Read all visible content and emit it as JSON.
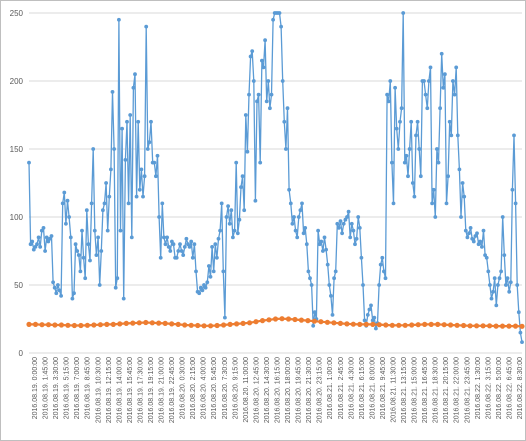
{
  "chart_data": {
    "type": "line",
    "title": "",
    "xlabel": "",
    "ylabel": "",
    "ylim": [
      0,
      250
    ],
    "yticks": [
      0,
      50,
      100,
      150,
      200,
      250
    ],
    "grid": true,
    "legend": "none",
    "x_tick_labels": [
      "2016.08.19. 0:00:00",
      "2016.08.19. 1:45:00",
      "2016.08.19. 3:30:00",
      "2016.08.19. 5:15:00",
      "2016.08.19. 7:00:00",
      "2016.08.19. 8:45:00",
      "2016.08.19. 10:30:00",
      "2016.08.19. 12:15:00",
      "2016.08.19. 14:00:00",
      "2016.08.19. 15:45:00",
      "2016.08.19. 17:30:00",
      "2016.08.19. 19:15:00",
      "2016.08.19. 21:00:00",
      "2016.08.19. 22:45:00",
      "2016.08.20. 0:30:00",
      "2016.08.20. 2:15:00",
      "2016.08.20. 4:00:00",
      "2016.08.20. 5:45:00",
      "2016.08.20. 7:30:00",
      "2016.08.20. 9:15:00",
      "2016.08.20. 11:00:00",
      "2016.08.20. 12:45:00",
      "2016.08.20. 14:30:00",
      "2016.08.20. 16:15:00",
      "2016.08.20. 18:00:00",
      "2016.08.20. 19:45:00",
      "2016.08.20. 21:30:00",
      "2016.08.20. 23:15:00",
      "2016.08.21. 1:00:00",
      "2016.08.21. 2:45:00",
      "2016.08.21. 4:30:00",
      "2016.08.21. 6:15:00",
      "2016.08.21. 8:00:00",
      "2016.08.21. 9:45:00",
      "2016.08.21. 11:30:00",
      "2016.08.21. 13:15:00",
      "2016.08.21. 15:00:00",
      "2016.08.21. 16:45:00",
      "2016.08.21. 18:30:00",
      "2016.08.21. 20:15:00",
      "2016.08.21. 22:00:00",
      "2016.08.21. 23:45:00",
      "2016.08.22. 1:30:00",
      "2016.08.22. 3:15:00",
      "2016.08.22. 5:00:00",
      "2016.08.22. 6:45:00",
      "2016.08.22. 8:30:00"
    ],
    "series": [
      {
        "color": "#5b9bd5",
        "markers": true,
        "values": [
          140,
          80,
          82,
          76,
          78,
          80,
          85,
          78,
          90,
          92,
          75,
          85,
          82,
          84,
          86,
          52,
          48,
          44,
          50,
          46,
          42,
          110,
          118,
          95,
          112,
          100,
          85,
          40,
          44,
          80,
          75,
          72,
          60,
          90,
          70,
          55,
          105,
          80,
          68,
          110,
          150,
          90,
          72,
          85,
          50,
          75,
          105,
          110,
          125,
          90,
          115,
          135,
          192,
          150,
          48,
          55,
          245,
          90,
          165,
          40,
          142,
          170,
          110,
          175,
          85,
          195,
          205,
          115,
          170,
          120,
          135,
          115,
          130,
          240,
          150,
          155,
          170,
          140,
          140,
          130,
          145,
          100,
          70,
          110,
          85,
          80,
          85,
          78,
          75,
          82,
          80,
          70,
          70,
          75,
          80,
          75,
          72,
          78,
          84,
          80,
          78,
          82,
          70,
          80,
          60,
          45,
          44,
          48,
          46,
          50,
          48,
          52,
          64,
          56,
          78,
          60,
          80,
          70,
          84,
          90,
          110,
          60,
          26,
          100,
          108,
          95,
          105,
          85,
          90,
          140,
          88,
          98,
          122,
          130,
          105,
          175,
          148,
          190,
          218,
          222,
          200,
          112,
          185,
          190,
          140,
          215,
          210,
          230,
          185,
          200,
          180,
          190,
          245,
          250,
          250,
          250,
          250,
          240,
          200,
          170,
          150,
          180,
          120,
          110,
          95,
          100,
          90,
          85,
          100,
          105,
          110,
          88,
          92,
          80,
          60,
          55,
          50,
          20,
          30,
          25,
          90,
          80,
          82,
          75,
          85,
          76,
          65,
          50,
          42,
          28,
          55,
          60,
          95,
          92,
          97,
          88,
          95,
          98,
          100,
          104,
          85,
          95,
          90,
          80,
          84,
          100,
          92,
          70,
          50,
          24,
          20,
          28,
          32,
          35,
          24,
          26,
          18,
          22,
          50,
          65,
          70,
          60,
          55,
          190,
          185,
          200,
          140,
          110,
          195,
          165,
          150,
          170,
          180,
          250,
          140,
          145,
          130,
          150,
          170,
          125,
          115,
          160,
          170,
          150,
          130,
          200,
          200,
          190,
          180,
          200,
          210,
          110,
          120,
          100,
          150,
          140,
          180,
          220,
          195,
          205,
          110,
          130,
          170,
          160,
          200,
          190,
          210,
          160,
          135,
          100,
          125,
          115,
          90,
          85,
          88,
          92,
          84,
          82,
          86,
          88,
          80,
          82,
          78,
          90,
          72,
          70,
          60,
          50,
          40,
          45,
          55,
          35,
          50,
          55,
          60,
          100,
          72,
          50,
          55,
          45,
          52,
          120,
          160,
          110,
          50,
          30,
          15,
          8
        ]
      },
      {
        "color": "#ed7d31",
        "markers": true,
        "values": [
          21,
          21,
          20.8,
          20.8,
          20.6,
          20.6,
          20.4,
          20.2,
          20.2,
          20.4,
          20.6,
          20.8,
          21,
          21,
          21.4,
          21.8,
          22,
          22.2,
          22.4,
          22.2,
          22,
          21.8,
          21.4,
          21,
          20.6,
          20.4,
          20.2,
          20,
          20,
          20.2,
          20.6,
          21,
          21.4,
          21.8,
          22.2,
          23,
          23.8,
          24.4,
          25,
          25.2,
          25,
          24.6,
          24.2,
          23.8,
          23.4,
          23,
          22.6,
          22.2,
          21.8,
          21.4,
          21.2,
          21,
          21,
          21,
          20.8,
          20.6,
          20.4,
          20.4,
          20.4,
          20.6,
          20.8,
          21,
          21,
          21,
          20.8,
          20.6,
          20.4,
          20.2,
          20,
          20,
          20,
          20,
          19.8,
          19.8,
          19.8,
          19.8,
          19.6
        ]
      }
    ]
  }
}
